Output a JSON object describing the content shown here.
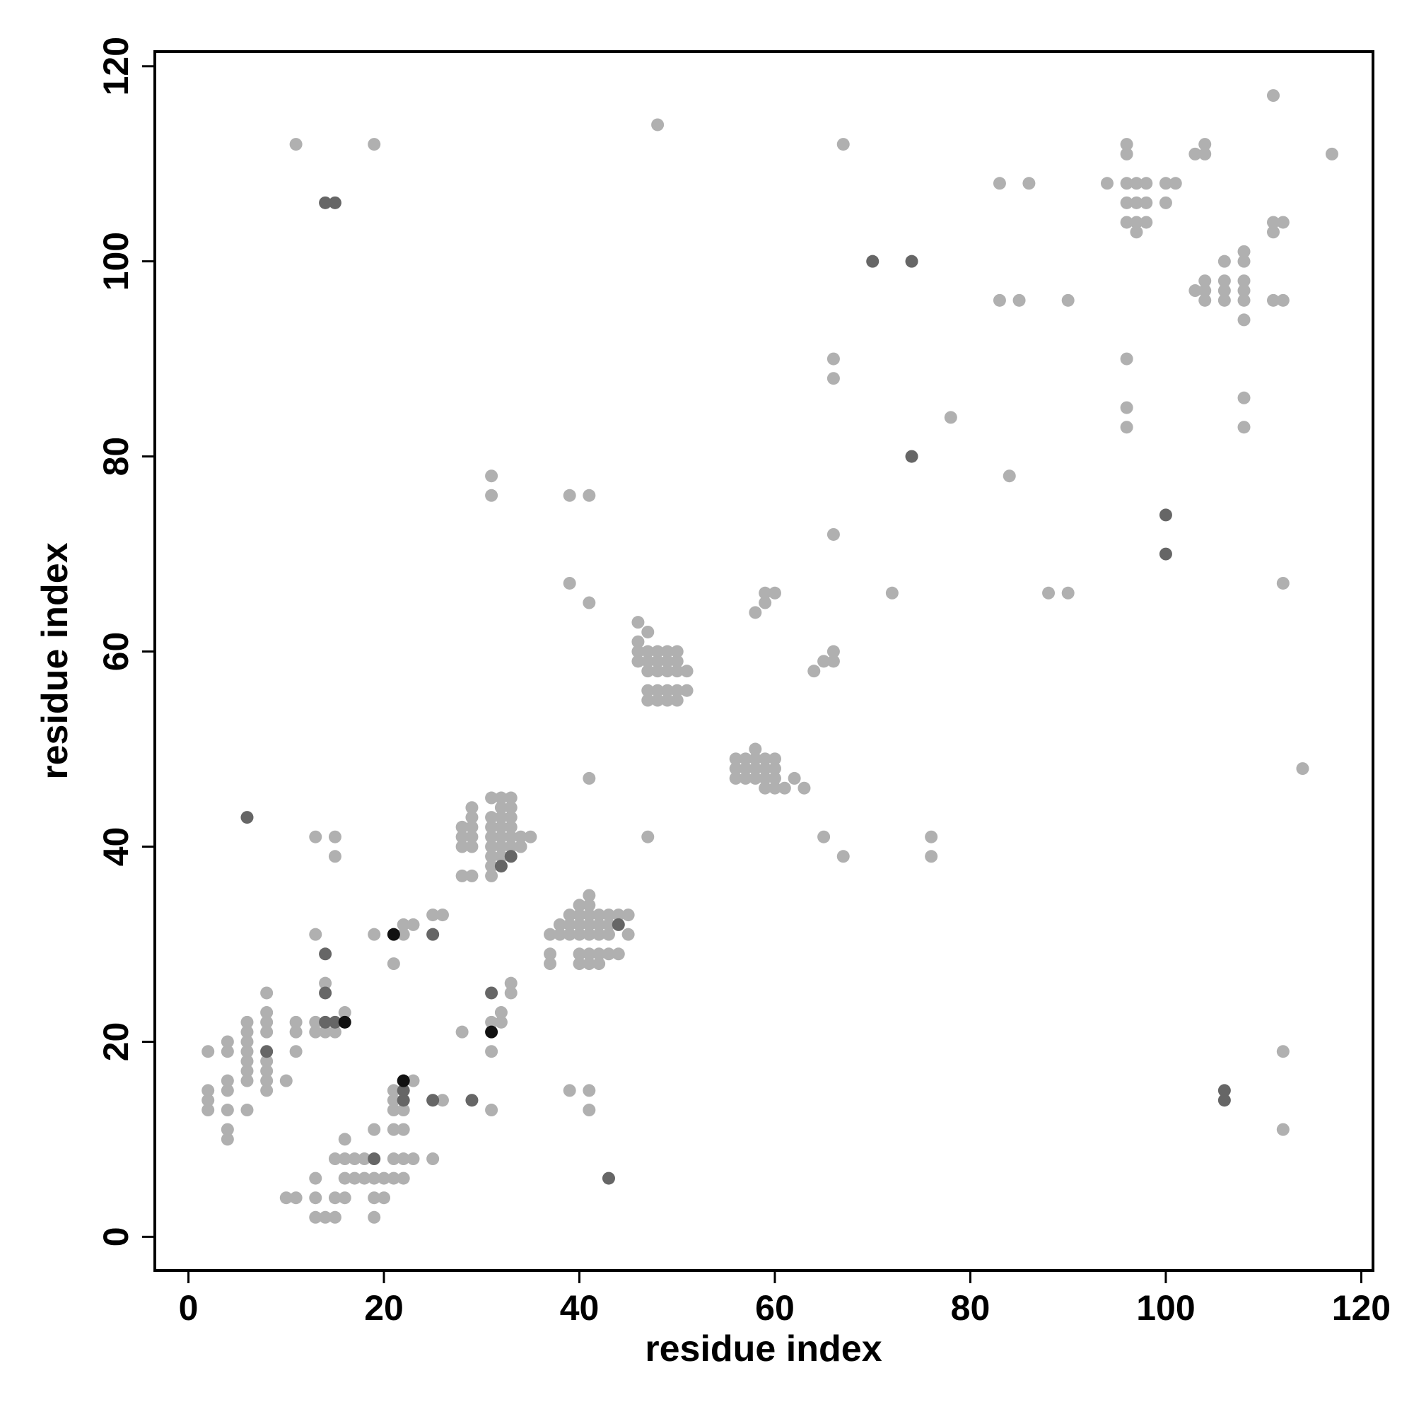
{
  "chart_data": {
    "type": "scatter",
    "x_label": "residue index",
    "y_label": "residue index",
    "xlim": [
      -3.44,
      121.2
    ],
    "ylim": [
      -3.45,
      121.5
    ],
    "xticks": [
      0,
      20,
      40,
      60,
      80,
      100,
      120
    ],
    "yticks": [
      0,
      20,
      40,
      60,
      80,
      100,
      120
    ],
    "series": [
      {
        "color": "#b0b0b0",
        "x": [
          11,
          19,
          48,
          67,
          111,
          117,
          96,
          96,
          103,
          104,
          104,
          83,
          86,
          94,
          96,
          97,
          98,
          100,
          101,
          96,
          97,
          98,
          100,
          96,
          97,
          98,
          97,
          111,
          112,
          111,
          108,
          106,
          108,
          103,
          104,
          104,
          106,
          106,
          108,
          108,
          83,
          85,
          90,
          104,
          106,
          108,
          111,
          112,
          108,
          66,
          66,
          96,
          96,
          96,
          108,
          108,
          78,
          84,
          31,
          31,
          39,
          41,
          66,
          39,
          41,
          72,
          88,
          90,
          112,
          58,
          59,
          59,
          60,
          46,
          47,
          46,
          46,
          47,
          48,
          49,
          50,
          46,
          47,
          48,
          49,
          50,
          47,
          48,
          49,
          50,
          51,
          64,
          65,
          66,
          66,
          47,
          48,
          49,
          50,
          51,
          47,
          48,
          49,
          50,
          56,
          57,
          58,
          60,
          58,
          59,
          56,
          57,
          58,
          59,
          60,
          56,
          57,
          58,
          59,
          60,
          62,
          59,
          60,
          61,
          63,
          41,
          114,
          47,
          65,
          76,
          67,
          76,
          28,
          29,
          28,
          29,
          28,
          29,
          29,
          29,
          28,
          29,
          31,
          32,
          33,
          31,
          32,
          33,
          32,
          33,
          31,
          32,
          33,
          31,
          32,
          33,
          34,
          35,
          31,
          32,
          33,
          34,
          31,
          32,
          31,
          31,
          13,
          15,
          15,
          39,
          40,
          41,
          42,
          43,
          44,
          45,
          40,
          41,
          41,
          37,
          38,
          39,
          40,
          41,
          42,
          43,
          45,
          38,
          39,
          40,
          41,
          42,
          43,
          37,
          37,
          40,
          41,
          42,
          43,
          44,
          40,
          41,
          42,
          13,
          19,
          22,
          22,
          23,
          25,
          26,
          21,
          14,
          33,
          33,
          32,
          31,
          32,
          28,
          31,
          8,
          8,
          8,
          6,
          6,
          8,
          11,
          11,
          13,
          13,
          14,
          15,
          16,
          4,
          4,
          6,
          6,
          6,
          6,
          6,
          8,
          8,
          8,
          8,
          2,
          11,
          10,
          2,
          2,
          2,
          4,
          4,
          4,
          4,
          4,
          6,
          21,
          22,
          21,
          21,
          23,
          26,
          21,
          22,
          21,
          22,
          23,
          25,
          16,
          15,
          16,
          17,
          18,
          19,
          13,
          16,
          17,
          18,
          19,
          20,
          21,
          22,
          10,
          11,
          13,
          15,
          16,
          19,
          20,
          13,
          14,
          15,
          19,
          31,
          39,
          41,
          41,
          112,
          112
        ],
        "values": [
          112,
          112,
          114,
          112,
          117,
          111,
          112,
          111,
          111,
          112,
          111,
          108,
          108,
          108,
          108,
          108,
          108,
          108,
          108,
          106,
          106,
          106,
          106,
          104,
          104,
          104,
          103,
          104,
          104,
          103,
          101,
          100,
          100,
          97,
          98,
          97,
          98,
          97,
          98,
          97,
          96,
          96,
          96,
          96,
          96,
          96,
          96,
          96,
          94,
          90,
          88,
          90,
          85,
          83,
          86,
          83,
          84,
          78,
          78,
          76,
          76,
          76,
          72,
          67,
          65,
          66,
          66,
          66,
          67,
          64,
          65,
          66,
          66,
          63,
          62,
          61,
          60,
          60,
          60,
          60,
          60,
          59,
          59,
          59,
          59,
          59,
          58,
          58,
          58,
          58,
          58,
          58,
          59,
          59,
          60,
          56,
          56,
          56,
          56,
          56,
          55,
          55,
          55,
          55,
          49,
          49,
          50,
          49,
          49,
          49,
          48,
          48,
          48,
          48,
          48,
          47,
          47,
          47,
          47,
          47,
          47,
          46,
          46,
          46,
          46,
          47,
          48,
          41,
          41,
          41,
          39,
          39,
          42,
          42,
          41,
          41,
          40,
          40,
          43,
          44,
          37,
          37,
          45,
          45,
          45,
          43,
          43,
          43,
          44,
          44,
          42,
          42,
          42,
          41,
          41,
          41,
          41,
          41,
          40,
          40,
          40,
          40,
          39,
          39,
          38,
          37,
          41,
          41,
          39,
          33,
          33,
          33,
          33,
          33,
          33,
          33,
          34,
          34,
          35,
          31,
          31,
          31,
          31,
          31,
          31,
          31,
          31,
          32,
          32,
          32,
          32,
          32,
          32,
          29,
          28,
          29,
          29,
          29,
          29,
          29,
          28,
          28,
          28,
          31,
          31,
          31,
          32,
          32,
          33,
          33,
          28,
          26,
          26,
          25,
          23,
          22,
          22,
          21,
          19,
          25,
          23,
          22,
          22,
          21,
          21,
          22,
          21,
          22,
          21,
          21,
          21,
          23,
          20,
          19,
          20,
          19,
          18,
          17,
          16,
          18,
          17,
          16,
          15,
          19,
          19,
          16,
          15,
          14,
          13,
          16,
          15,
          13,
          11,
          10,
          13,
          15,
          13,
          14,
          13,
          16,
          14,
          11,
          11,
          8,
          8,
          8,
          8,
          10,
          8,
          8,
          8,
          8,
          11,
          6,
          6,
          6,
          6,
          6,
          6,
          6,
          6,
          4,
          4,
          4,
          4,
          4,
          4,
          4,
          2,
          2,
          2,
          2,
          13,
          15,
          15,
          13,
          19,
          11
        ]
      },
      {
        "color": "#666666",
        "x": [
          14,
          15,
          70,
          74,
          74,
          100,
          100,
          6,
          14,
          14,
          14,
          15,
          8,
          31,
          19,
          22,
          22,
          25,
          29,
          43,
          106,
          106,
          25,
          44,
          33,
          32
        ],
        "values": [
          106,
          106,
          100,
          100,
          80,
          74,
          70,
          43,
          29,
          25,
          22,
          22,
          19,
          25,
          8,
          14,
          15,
          14,
          14,
          6,
          15,
          14,
          31,
          32,
          39,
          38
        ]
      },
      {
        "color": "#111111",
        "x": [
          21,
          16,
          31,
          22
        ],
        "values": [
          31,
          22,
          21,
          16
        ]
      }
    ]
  }
}
